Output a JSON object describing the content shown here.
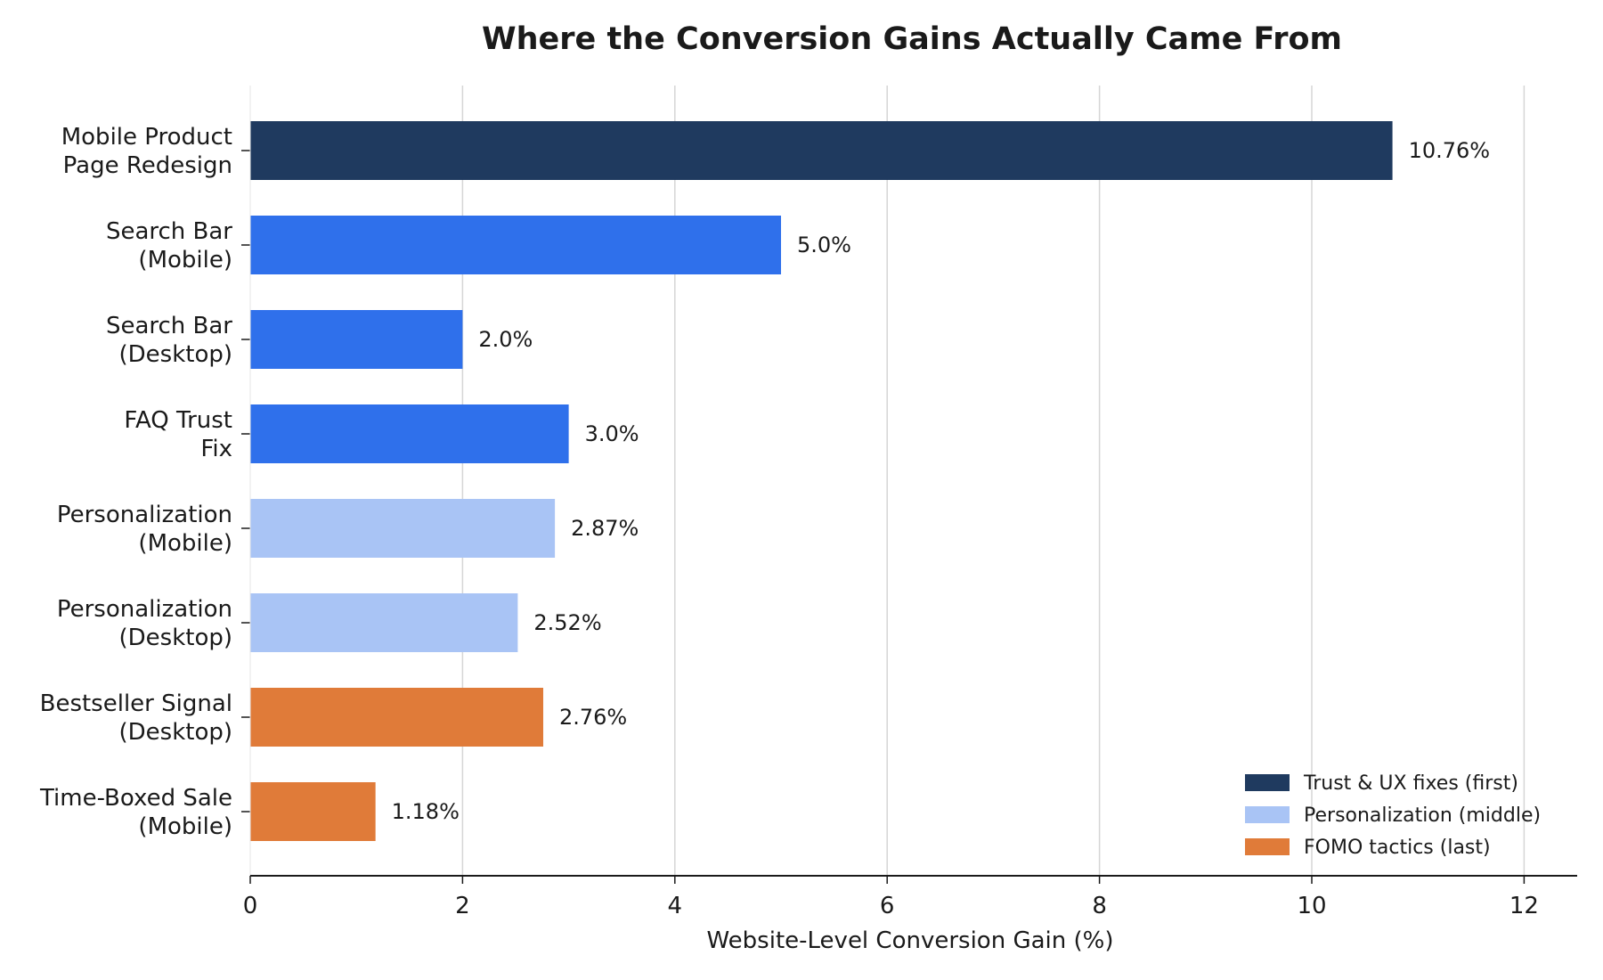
{
  "chart_data": {
    "type": "bar",
    "orientation": "horizontal",
    "title": "Where the Conversion Gains Actually Came From",
    "xlabel": "Website-Level Conversion Gain (%)",
    "ylabel": "",
    "xlim": [
      0,
      12.5
    ],
    "xticks": [
      0,
      2,
      4,
      6,
      8,
      10,
      12
    ],
    "grid": "vertical",
    "legend_position": "bottom-right",
    "categories": [
      [
        "Mobile Product",
        "Page Redesign"
      ],
      [
        "Search Bar",
        "(Mobile)"
      ],
      [
        "Search Bar",
        "(Desktop)"
      ],
      [
        "FAQ Trust",
        "Fix"
      ],
      [
        "Personalization",
        "(Mobile)"
      ],
      [
        "Personalization",
        "(Desktop)"
      ],
      [
        "Bestseller Signal",
        "(Desktop)"
      ],
      [
        "Time-Boxed Sale",
        "(Mobile)"
      ]
    ],
    "values": [
      10.76,
      5.0,
      2.0,
      3.0,
      2.87,
      2.52,
      2.76,
      1.18
    ],
    "value_labels": [
      "10.76%",
      "5.0%",
      "2.0%",
      "3.0%",
      "2.87%",
      "2.52%",
      "2.76%",
      "1.18%"
    ],
    "bar_colors": [
      "#1f3a5f",
      "#2f70eb",
      "#2f70eb",
      "#2f70eb",
      "#a9c4f5",
      "#a9c4f5",
      "#e07b39",
      "#e07b39"
    ],
    "legend": [
      {
        "label": "Trust & UX fixes (first)",
        "color": "#1f3a5f"
      },
      {
        "label": "Personalization (middle)",
        "color": "#a9c4f5"
      },
      {
        "label": "FOMO tactics (last)",
        "color": "#e07b39"
      }
    ]
  }
}
